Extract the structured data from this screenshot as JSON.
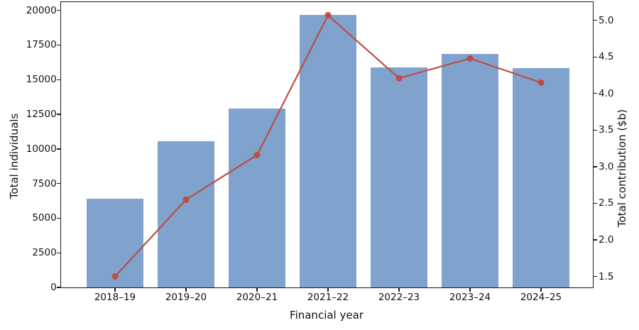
{
  "chart_data": {
    "type": "bar",
    "title": "",
    "xlabel": "Financial year",
    "categories": [
      "2018–19",
      "2019–20",
      "2020–21",
      "2021–22",
      "2022–23",
      "2023–24",
      "2024–25"
    ],
    "series": [
      {
        "name": "Total individuals",
        "type": "bar",
        "axis": "left",
        "color": "#7fa3cd",
        "values": [
          6400,
          10550,
          12900,
          19650,
          15850,
          16850,
          15800
        ]
      },
      {
        "name": "Total contribution ($b)",
        "type": "line",
        "axis": "right",
        "color": "#bf4c47",
        "marker": "circle",
        "marker_radius": 4.5,
        "line_width": 2.2,
        "values": [
          1.5,
          2.55,
          3.16,
          5.07,
          4.21,
          4.48,
          4.15
        ]
      }
    ],
    "left_axis": {
      "label": "Total individuals",
      "ticks": [
        0,
        2500,
        5000,
        7500,
        10000,
        12500,
        15000,
        17500,
        20000
      ],
      "range": [
        0,
        20600
      ],
      "format": "integer"
    },
    "right_axis": {
      "label": "Total contribution ($b)",
      "ticks": [
        1.5,
        2.0,
        2.5,
        3.0,
        3.5,
        4.0,
        4.5,
        5.0
      ],
      "range": [
        1.35,
        5.25
      ],
      "format": "one_decimal"
    },
    "grid": false,
    "legend": "none",
    "spine_color": "#1a1a1a",
    "background": "#ffffff"
  }
}
